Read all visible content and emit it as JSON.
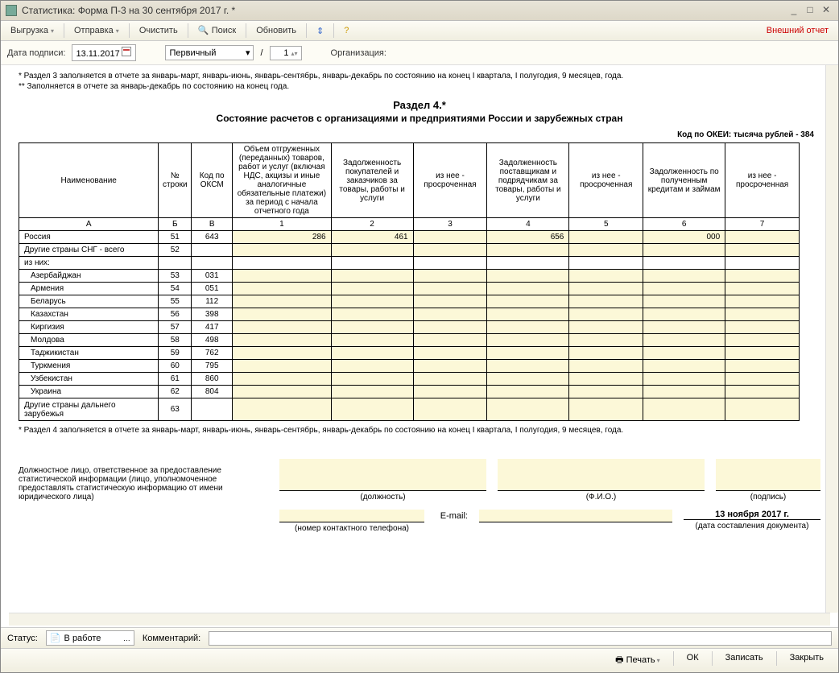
{
  "window": {
    "title": "Статистика: Форма П-3 на 30 сентября 2017 г. *"
  },
  "toolbar": {
    "export": "Выгрузка",
    "send": "Отправка",
    "clear": "Очистить",
    "search": "Поиск",
    "refresh": "Обновить",
    "external": "Внешний отчет"
  },
  "subbar": {
    "date_label": "Дата подписи:",
    "date_value": "13.11.2017",
    "type_value": "Первичный",
    "slash": "/",
    "num_value": "1",
    "org_label": "Организация:"
  },
  "notes": {
    "n1": "* Раздел 3 заполняется в отчете за январь-март, январь-июнь, январь-сентябрь, январь-декабрь по состоянию на конец I квартала, I полугодия, 9 месяцев, года.",
    "n2": "** Заполняется в отчете за январь-декабрь по состоянию на конец года."
  },
  "section": {
    "title": "Раздел 4.*",
    "subtitle": "Состояние расчетов с организациями и предприятиями России и зарубежных стран",
    "okei": "Код по ОКЕИ: тысяча рублей - 384"
  },
  "table": {
    "headers": [
      "Наименование",
      "№ строки",
      "Код по ОКСМ",
      "Объем отгруженных (переданных) товаров, работ и услуг (включая НДС, акцизы и иные аналогичные обязательные платежи) за период с начала отчетного года",
      "Задолженность покупателей и заказчиков за товары, работы и  услуги",
      "из нее - просроченная",
      "Задолженность поставщикам и подрядчикам за товары, работы и услуги",
      "из нее - просроченная",
      "Задолженность по полученным кредитам и займам",
      "из нее - просроченная"
    ],
    "letters": [
      "А",
      "Б",
      "В",
      "1",
      "2",
      "3",
      "4",
      "5",
      "6",
      "7"
    ],
    "rows": [
      {
        "name": "Россия",
        "line": "51",
        "code": "643",
        "v1": "286",
        "v2": "461",
        "v3": "",
        "v4": "656",
        "v5": "",
        "v6": "000",
        "v7": "",
        "editable": true
      },
      {
        "name": "Другие страны СНГ - всего",
        "line": "52",
        "code": "",
        "v1": "",
        "v2": "",
        "v3": "",
        "v4": "",
        "v5": "",
        "v6": "",
        "v7": "",
        "editable": true
      },
      {
        "name": "из них:",
        "line": "",
        "code": "",
        "sub": true
      },
      {
        "name": "Азербайджан",
        "line": "53",
        "code": "031",
        "indent": true,
        "editable": true
      },
      {
        "name": "Армения",
        "line": "54",
        "code": "051",
        "indent": true,
        "editable": true
      },
      {
        "name": "Беларусь",
        "line": "55",
        "code": "112",
        "indent": true,
        "editable": true
      },
      {
        "name": "Казахстан",
        "line": "56",
        "code": "398",
        "indent": true,
        "editable": true
      },
      {
        "name": "Киргизия",
        "line": "57",
        "code": "417",
        "indent": true,
        "editable": true
      },
      {
        "name": "Молдова",
        "line": "58",
        "code": "498",
        "indent": true,
        "editable": true
      },
      {
        "name": "Таджикистан",
        "line": "59",
        "code": "762",
        "indent": true,
        "editable": true
      },
      {
        "name": "Туркмения",
        "line": "60",
        "code": "795",
        "indent": true,
        "editable": true
      },
      {
        "name": "Узбекистан",
        "line": "61",
        "code": "860",
        "indent": true,
        "editable": true
      },
      {
        "name": "Украина",
        "line": "62",
        "code": "804",
        "indent": true,
        "editable": true
      },
      {
        "name": "Другие страны дальнего зарубежья",
        "line": "63",
        "code": "",
        "editable": true,
        "tall": true
      }
    ]
  },
  "footnote": "* Раздел 4 заполняется в отчете за январь-март, январь-июнь, январь-сентябрь, январь-декабрь по состоянию на конец  I квартала, I полугодия, 9 месяцев, года.",
  "signature": {
    "left": "Должностное лицо, ответственное за предоставление статистической информации (лицо, уполномоченное предоставлять статистическую информацию от имени юридического лица)",
    "labels": {
      "post": "(должность)",
      "fio": "(Ф.И.О.)",
      "sign": "(подпись)",
      "phone": "(номер контактного телефона)",
      "email": "E-mail:",
      "date": "(дата составления документа)"
    },
    "date_value": "13 ноября 2017 г."
  },
  "status": {
    "label": "Статус:",
    "value": "В работе",
    "comment_label": "Комментарий:"
  },
  "footer": {
    "print": "Печать",
    "ok": "ОК",
    "save": "Записать",
    "close": "Закрыть"
  }
}
